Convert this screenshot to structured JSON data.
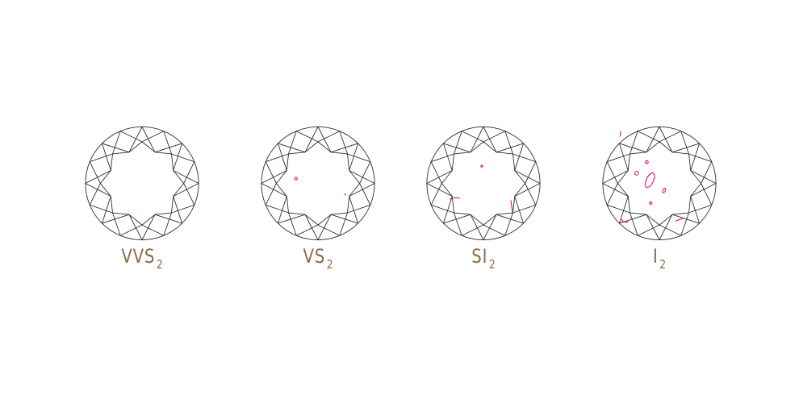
{
  "colors": {
    "outline": "#2b2b2b",
    "inclusion": "#e4007f",
    "label": "#8a6a45",
    "background": "#ffffff"
  },
  "grades": [
    {
      "label": "VVS",
      "sub": "2"
    },
    {
      "label": "VS",
      "sub": "2"
    },
    {
      "label": "SI",
      "sub": "2"
    },
    {
      "label": "I",
      "sub": "2"
    }
  ]
}
